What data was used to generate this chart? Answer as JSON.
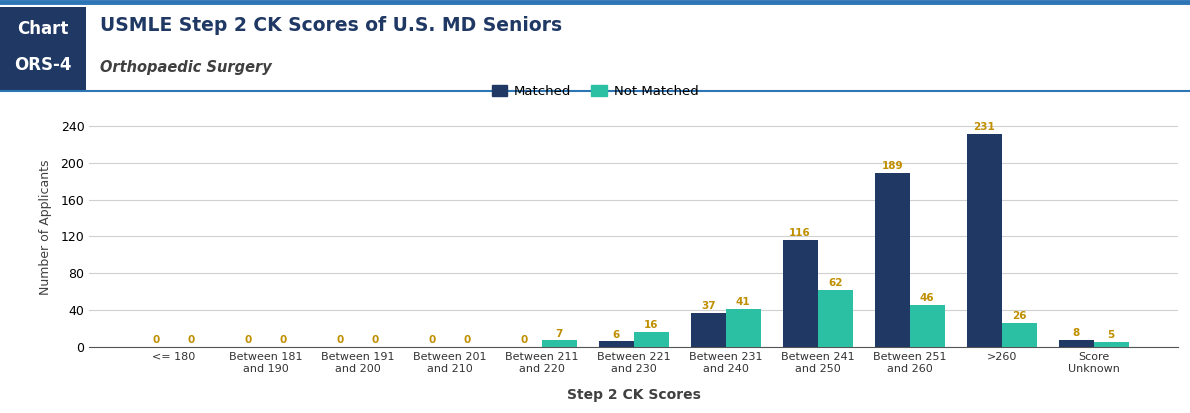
{
  "categories": [
    "<= 180",
    "Between 181\nand 190",
    "Between 191\nand 200",
    "Between 201\nand 210",
    "Between 211\nand 220",
    "Between 221\nand 230",
    "Between 231\nand 240",
    "Between 241\nand 250",
    "Between 251\nand 260",
    ">260",
    "Score\nUnknown"
  ],
  "matched": [
    0,
    0,
    0,
    0,
    0,
    6,
    37,
    116,
    189,
    231,
    8
  ],
  "not_matched": [
    0,
    0,
    0,
    0,
    7,
    16,
    41,
    62,
    46,
    26,
    5
  ],
  "matched_color": "#1f3864",
  "not_matched_color": "#2bbfa4",
  "title_main": "USMLE Step 2 CK Scores of U.S. MD Seniors",
  "title_sub": "Orthopaedic Surgery",
  "xlabel": "Step 2 CK Scores",
  "ylabel": "Number of Applicants",
  "ylim": [
    0,
    260
  ],
  "yticks": [
    0,
    40,
    80,
    120,
    160,
    200,
    240
  ],
  "legend_matched": "Matched",
  "legend_not_matched": "Not Matched",
  "bar_value_color": "#bf8f00",
  "header_bg_color": "#1f3864",
  "header_text_color": "#ffffff",
  "top_border_color": "#2e75b6",
  "divider_color": "#2e75b6",
  "background_color": "#ffffff",
  "title_color": "#1f3864",
  "subtitle_color": "#404040",
  "axis_label_color": "#404040"
}
